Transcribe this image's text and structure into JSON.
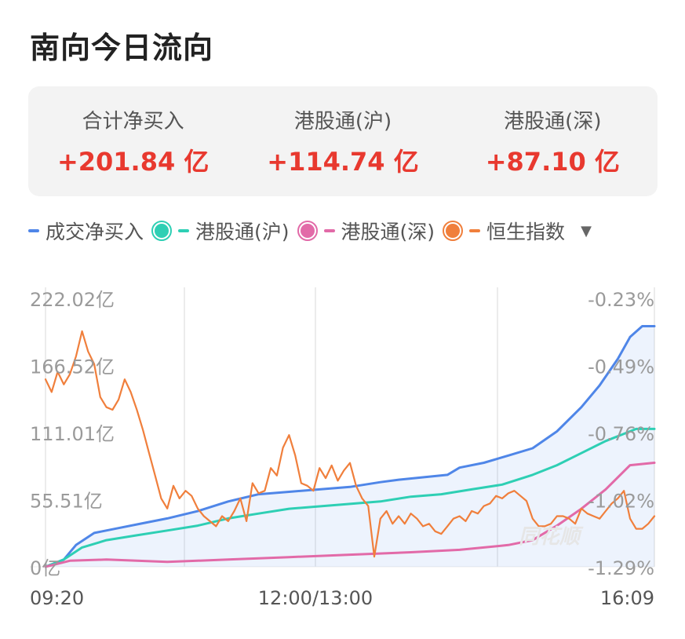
{
  "title": "南向今日流向",
  "summary": [
    {
      "label": "合计净买入",
      "value": "+201.84 亿"
    },
    {
      "label": "港股通(沪)",
      "value": "+114.74 亿"
    },
    {
      "label": "港股通(深)",
      "value": "+87.10 亿"
    }
  ],
  "legend": {
    "items": [
      {
        "label": "成交净买入",
        "color": "#4f86e8",
        "style": "dash"
      },
      {
        "label": "港股通(沪)",
        "color": "#2ecfb4",
        "style": "dot"
      },
      {
        "label": "港股通(深)",
        "color": "#e26aa8",
        "style": "dot"
      },
      {
        "label": "恒生指数",
        "color": "#f07f3c",
        "style": "dot"
      }
    ],
    "dropdown_icon": "triangle-down"
  },
  "watermark": "同花顺",
  "chart_data": {
    "type": "line",
    "x_labels": [
      "09:20",
      "12:00/13:00",
      "16:09"
    ],
    "y_left_ticks": [
      "222.02亿",
      "166.52亿",
      "111.01亿",
      "55.51亿",
      "0亿"
    ],
    "y_left_range": [
      0,
      222.02
    ],
    "y_right_ticks": [
      "-0.23%",
      "-0.49%",
      "-0.76%",
      "-1.02%",
      "-1.29%"
    ],
    "y_right_range": [
      -1.29,
      -0.23
    ],
    "x_range": [
      0,
      100
    ],
    "series": [
      {
        "name": "成交净买入",
        "color": "#4f86e8",
        "fill": true,
        "x": [
          0,
          3,
          5,
          8,
          12,
          16,
          20,
          25,
          30,
          35,
          40,
          45,
          50,
          55,
          58,
          62,
          66,
          68,
          72,
          76,
          80,
          84,
          88,
          91,
          94,
          96,
          98,
          100
        ],
        "y": [
          0,
          6,
          18,
          28,
          32,
          36,
          40,
          46,
          54,
          60,
          62,
          64,
          66,
          70,
          72,
          74,
          76,
          82,
          86,
          92,
          98,
          112,
          132,
          150,
          172,
          190,
          199,
          199
        ]
      },
      {
        "name": "港股通(沪)",
        "color": "#2ecfb4",
        "fill": false,
        "x": [
          0,
          3,
          6,
          10,
          15,
          20,
          25,
          30,
          35,
          40,
          45,
          50,
          55,
          60,
          65,
          70,
          75,
          80,
          84,
          88,
          92,
          95,
          97,
          100
        ],
        "y": [
          0,
          6,
          16,
          22,
          26,
          30,
          34,
          40,
          44,
          48,
          50,
          52,
          54,
          58,
          60,
          64,
          68,
          76,
          84,
          94,
          104,
          110,
          114,
          114
        ]
      },
      {
        "name": "港股通(深)",
        "color": "#e26aa8",
        "fill": false,
        "x": [
          0,
          4,
          10,
          20,
          30,
          40,
          50,
          60,
          68,
          72,
          76,
          80,
          84,
          88,
          92,
          96,
          100
        ],
        "y": [
          0,
          5,
          6,
          4,
          6,
          8,
          10,
          12,
          14,
          16,
          18,
          22,
          34,
          48,
          64,
          84,
          86
        ]
      },
      {
        "name": "恒生指数",
        "color": "#f07f3c",
        "fill": false,
        "x": [
          0,
          1,
          2,
          3,
          4,
          5,
          6,
          7,
          8,
          9,
          10,
          11,
          12,
          13,
          14,
          15,
          16,
          17,
          18,
          19,
          20,
          21,
          22,
          23,
          24,
          25,
          26,
          27,
          28,
          29,
          30,
          31,
          32,
          33,
          34,
          35,
          36,
          37,
          38,
          39,
          40,
          41,
          42,
          43,
          44,
          45,
          46,
          47,
          48,
          49,
          50,
          51,
          52,
          53,
          54,
          55,
          56,
          57,
          58,
          59,
          60,
          61,
          62,
          63,
          64,
          65,
          66,
          67,
          68,
          69,
          70,
          71,
          72,
          73,
          74,
          75,
          76,
          77,
          78,
          79,
          80,
          81,
          82,
          83,
          84,
          85,
          86,
          87,
          88,
          89,
          90,
          91,
          92,
          93,
          94,
          95,
          96,
          97,
          98,
          99,
          100
        ],
        "y": [
          -0.55,
          -0.6,
          -0.52,
          -0.57,
          -0.53,
          -0.46,
          -0.36,
          -0.44,
          -0.49,
          -0.62,
          -0.66,
          -0.67,
          -0.63,
          -0.55,
          -0.6,
          -0.67,
          -0.75,
          -0.84,
          -0.93,
          -1.02,
          -1.06,
          -0.97,
          -1.02,
          -0.99,
          -1.01,
          -1.06,
          -1.09,
          -1.11,
          -1.13,
          -1.09,
          -1.11,
          -1.07,
          -1.02,
          -1.11,
          -0.96,
          -1.0,
          -0.99,
          -0.9,
          -0.93,
          -0.82,
          -0.77,
          -0.85,
          -0.96,
          -0.97,
          -0.99,
          -0.9,
          -0.94,
          -0.89,
          -0.95,
          -0.91,
          -0.88,
          -0.97,
          -1.02,
          -1.05,
          -1.25,
          -1.1,
          -1.07,
          -1.12,
          -1.09,
          -1.12,
          -1.08,
          -1.1,
          -1.13,
          -1.12,
          -1.15,
          -1.16,
          -1.13,
          -1.1,
          -1.09,
          -1.11,
          -1.07,
          -1.08,
          -1.05,
          -1.04,
          -1.01,
          -1.02,
          -1.0,
          -0.99,
          -1.01,
          -1.03,
          -1.1,
          -1.13,
          -1.13,
          -1.12,
          -1.09,
          -1.09,
          -1.1,
          -1.12,
          -1.06,
          -1.08,
          -1.09,
          -1.1,
          -1.07,
          -1.04,
          -1.02,
          -0.99,
          -1.1,
          -1.14,
          -1.14,
          -1.12,
          -1.09
        ]
      }
    ]
  }
}
